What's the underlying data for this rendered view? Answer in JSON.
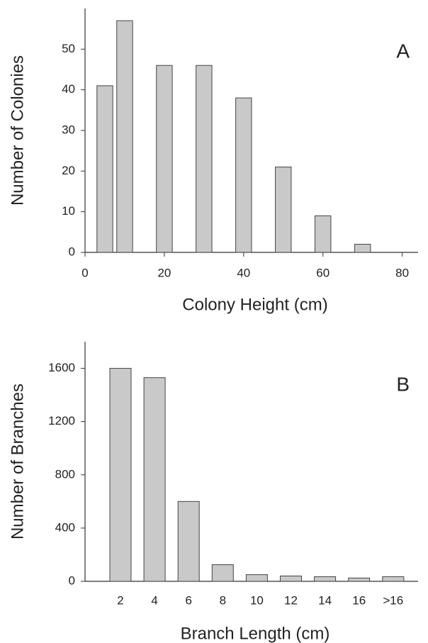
{
  "chart_data": [
    {
      "type": "bar",
      "annotation": "A",
      "x_label": "Colony Height (cm)",
      "y_label": "Number of Colonies",
      "x": [
        5,
        10,
        20,
        30,
        40,
        50,
        60,
        70
      ],
      "values": [
        41,
        57,
        46,
        46,
        38,
        21,
        9,
        2
      ],
      "color": "#c9c9c9",
      "xlim": [
        0,
        84
      ],
      "xticks": [
        0,
        20,
        40,
        60,
        80
      ],
      "ylim": [
        0,
        60
      ],
      "yticks": [
        0,
        10,
        20,
        30,
        40,
        50
      ]
    },
    {
      "type": "bar",
      "annotation": "B",
      "x_label": "Branch Length (cm)",
      "y_label": "Number of Branches",
      "categories": [
        "2",
        "4",
        "6",
        "8",
        "10",
        "12",
        "14",
        "16",
        ">16"
      ],
      "values": [
        1600,
        1530,
        600,
        125,
        50,
        40,
        35,
        25,
        35
      ],
      "color": "#c9c9c9",
      "ylim": [
        0,
        1800
      ],
      "yticks": [
        0,
        400,
        800,
        1200,
        1600
      ]
    }
  ]
}
